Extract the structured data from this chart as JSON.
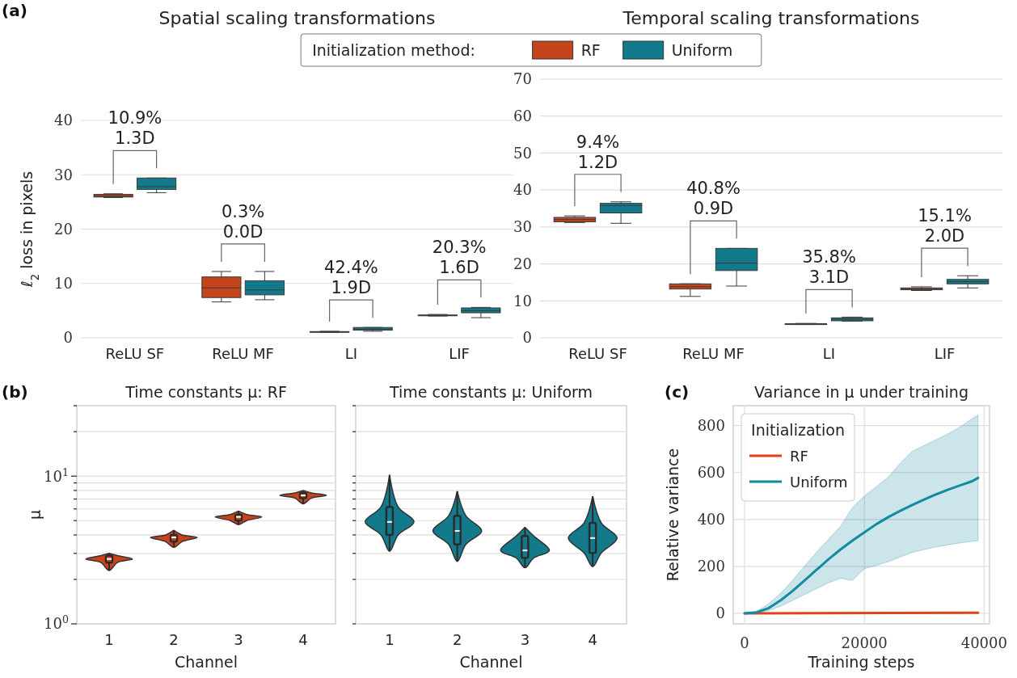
{
  "chart_data": [
    {
      "type": "box",
      "title": "Spatial scaling transformations",
      "ylabel": "ℓ$_{2}$ loss in pixels",
      "categories": [
        "ReLU SF",
        "ReLU MF",
        "LI",
        "LIF"
      ],
      "ylim": [
        0,
        40
      ],
      "yticks": [
        0,
        10,
        20,
        30,
        40
      ],
      "grid": "y",
      "legend": "top",
      "legend_title": "Initialization method:",
      "series": [
        {
          "name": "RF",
          "color": "#c4451c",
          "boxes": [
            {
              "low": 25.8,
              "q1": 25.9,
              "median": 26.1,
              "q3": 26.4,
              "high": 26.5
            },
            {
              "low": 6.6,
              "q1": 7.4,
              "median": 9.2,
              "q3": 11.2,
              "high": 12.2
            },
            {
              "low": 1.0,
              "q1": 1.05,
              "median": 1.1,
              "q3": 1.15,
              "high": 1.2
            },
            {
              "low": 4.0,
              "q1": 4.05,
              "median": 4.1,
              "q3": 4.2,
              "high": 4.3
            }
          ]
        },
        {
          "name": "Uniform",
          "color": "#137a8c",
          "boxes": [
            {
              "low": 26.7,
              "q1": 27.3,
              "median": 27.8,
              "q3": 29.4,
              "high": 29.4
            },
            {
              "low": 7.0,
              "q1": 7.9,
              "median": 8.8,
              "q3": 10.5,
              "high": 12.2
            },
            {
              "low": 1.2,
              "q1": 1.4,
              "median": 1.6,
              "q3": 1.9,
              "high": 1.9
            },
            {
              "low": 3.7,
              "q1": 4.6,
              "median": 5.0,
              "q3": 5.5,
              "high": 5.6
            }
          ]
        }
      ],
      "annotations": [
        "(a)",
        "10.9%\n1.3D",
        "0.3%\n0.0D",
        "42.4%\n1.9D",
        "20.3%\n1.6D"
      ]
    },
    {
      "type": "box",
      "title": "Temporal scaling transformations",
      "categories": [
        "ReLU SF",
        "ReLU MF",
        "LI",
        "LIF"
      ],
      "ylim": [
        0,
        70
      ],
      "yticks": [
        0,
        10,
        20,
        30,
        40,
        50,
        60,
        70
      ],
      "grid": "y",
      "series": [
        {
          "color": "#c4451c",
          "boxes": [
            {
              "low": 31.2,
              "q1": 31.4,
              "median": 32.0,
              "q3": 32.6,
              "high": 33.0
            },
            {
              "low": 11.2,
              "q1": 13.2,
              "median": 13.8,
              "q3": 14.6,
              "high": 14.6
            },
            {
              "low": 3.6,
              "q1": 3.7,
              "median": 3.75,
              "q3": 3.8,
              "high": 3.9
            },
            {
              "low": 12.8,
              "q1": 13.0,
              "median": 13.3,
              "q3": 13.5,
              "high": 13.8
            }
          ]
        },
        {
          "color": "#137a8c",
          "boxes": [
            {
              "low": 31.0,
              "q1": 33.8,
              "median": 35.8,
              "q3": 36.4,
              "high": 36.8
            },
            {
              "low": 14.0,
              "q1": 18.2,
              "median": 20.2,
              "q3": 24.2,
              "high": 24.2
            },
            {
              "low": 4.5,
              "q1": 4.6,
              "median": 5.0,
              "q3": 5.4,
              "high": 5.6
            },
            {
              "low": 13.5,
              "q1": 14.6,
              "median": 15.2,
              "q3": 15.8,
              "high": 16.8
            }
          ]
        }
      ],
      "annotations": [
        "9.4%\n1.2D",
        "40.8%\n0.9D",
        "35.8%\n3.1D",
        "15.1%\n2.0D"
      ]
    },
    {
      "type": "box",
      "title": "Time constants μ: RF",
      "xlabel": "Channel",
      "ylabel": "μ",
      "categories": [
        "1",
        "2",
        "3",
        "4"
      ],
      "log": true,
      "ylim": [
        1,
        30
      ],
      "yticks": [
        {
          "value": 1,
          "label": "10$^{0}$"
        },
        {
          "value": 2,
          "label": null
        },
        {
          "value": 3,
          "label": null
        },
        {
          "value": 4,
          "label": null
        },
        {
          "value": 5,
          "label": null
        },
        {
          "value": 6,
          "label": null
        },
        {
          "value": 7,
          "label": null
        },
        {
          "value": 8,
          "label": null
        },
        {
          "value": 9,
          "label": null
        },
        {
          "value": 10,
          "label": "10$^{1}$"
        },
        {
          "value": 20,
          "label": null
        },
        {
          "value": 30,
          "label": null
        }
      ],
      "grid": "y",
      "series": [
        {
          "color": "#c9421a",
          "boxes": [
            {
              "low": 2.3,
              "q1": 2.6,
              "median": 2.75,
              "q3": 2.9,
              "high": 3.0
            },
            {
              "low": 3.3,
              "q1": 3.6,
              "median": 3.85,
              "q3": 4.0,
              "high": 4.3
            },
            {
              "low": 4.7,
              "q1": 5.0,
              "median": 5.3,
              "q3": 5.5,
              "high": 5.8
            },
            {
              "low": 6.5,
              "q1": 7.1,
              "median": 7.4,
              "q3": 7.7,
              "high": 8.0
            }
          ]
        }
      ],
      "annotations": [
        "(b)"
      ]
    },
    {
      "type": "box",
      "title": "Time constants μ: Uniform",
      "xlabel": "Channel",
      "categories": [
        "1",
        "2",
        "3",
        "4"
      ],
      "log": true,
      "ylim": [
        1,
        30
      ],
      "yticks": [
        {
          "value": 1,
          "label": null
        },
        {
          "value": 2,
          "label": null
        },
        {
          "value": 3,
          "label": null
        },
        {
          "value": 4,
          "label": null
        },
        {
          "value": 5,
          "label": null
        },
        {
          "value": 6,
          "label": null
        },
        {
          "value": 7,
          "label": null
        },
        {
          "value": 8,
          "label": null
        },
        {
          "value": 9,
          "label": null
        },
        {
          "value": 10,
          "label": null
        },
        {
          "value": 20,
          "label": null
        },
        {
          "value": 30,
          "label": null
        }
      ],
      "grid": "y",
      "tick_labels": "x",
      "series": [
        {
          "color": "#137a8c",
          "boxes": [
            {
              "low": 3.1,
              "q1": 4.0,
              "median": 4.9,
              "q3": 6.2,
              "high": 10.2
            },
            {
              "low": 2.65,
              "q1": 3.45,
              "median": 4.26,
              "q3": 5.4,
              "high": 7.9
            },
            {
              "low": 2.4,
              "q1": 2.79,
              "median": 3.14,
              "q3": 3.94,
              "high": 4.5
            },
            {
              "low": 2.44,
              "q1": 3.02,
              "median": 3.81,
              "q3": 4.83,
              "high": 7.3
            }
          ]
        }
      ]
    },
    {
      "type": "line",
      "title": "Variance in μ under training",
      "xlabel": "Training steps",
      "ylabel": "Relative variance",
      "xlim": [
        -1900,
        40900
      ],
      "xticks": [
        0,
        20000,
        40000
      ],
      "ylim": [
        -45,
        885
      ],
      "yticks": [
        0,
        200,
        400,
        600,
        800
      ],
      "grid": true,
      "legend": "top left",
      "legend_title": "Initialization",
      "series": [
        {
          "name": "RF",
          "color": "#e0421a",
          "x": [
            0,
            39000
          ],
          "values": [
            0,
            2
          ]
        },
        {
          "name": "Uniform",
          "color": "#138aa0",
          "x": [
            0,
            2000,
            4000,
            6000,
            8000,
            10000,
            12000,
            14000,
            16000,
            18000,
            20000,
            22000,
            24000,
            26000,
            28000,
            30000,
            32000,
            34000,
            36000,
            38000,
            39000
          ],
          "values": [
            0,
            4,
            22,
            55,
            95,
            140,
            185,
            230,
            272,
            310,
            345,
            380,
            410,
            437,
            462,
            485,
            507,
            527,
            545,
            563,
            577
          ],
          "lower": [
            0,
            2,
            12,
            30,
            55,
            80,
            105,
            130,
            150,
            140,
            190,
            205,
            220,
            240,
            260,
            272,
            283,
            292,
            300,
            307,
            310
          ],
          "upper": [
            0,
            8,
            40,
            85,
            140,
            200,
            260,
            315,
            370,
            450,
            500,
            540,
            580,
            640,
            690,
            715,
            740,
            765,
            795,
            830,
            845
          ]
        }
      ],
      "annotations": [
        "(c)"
      ]
    }
  ]
}
